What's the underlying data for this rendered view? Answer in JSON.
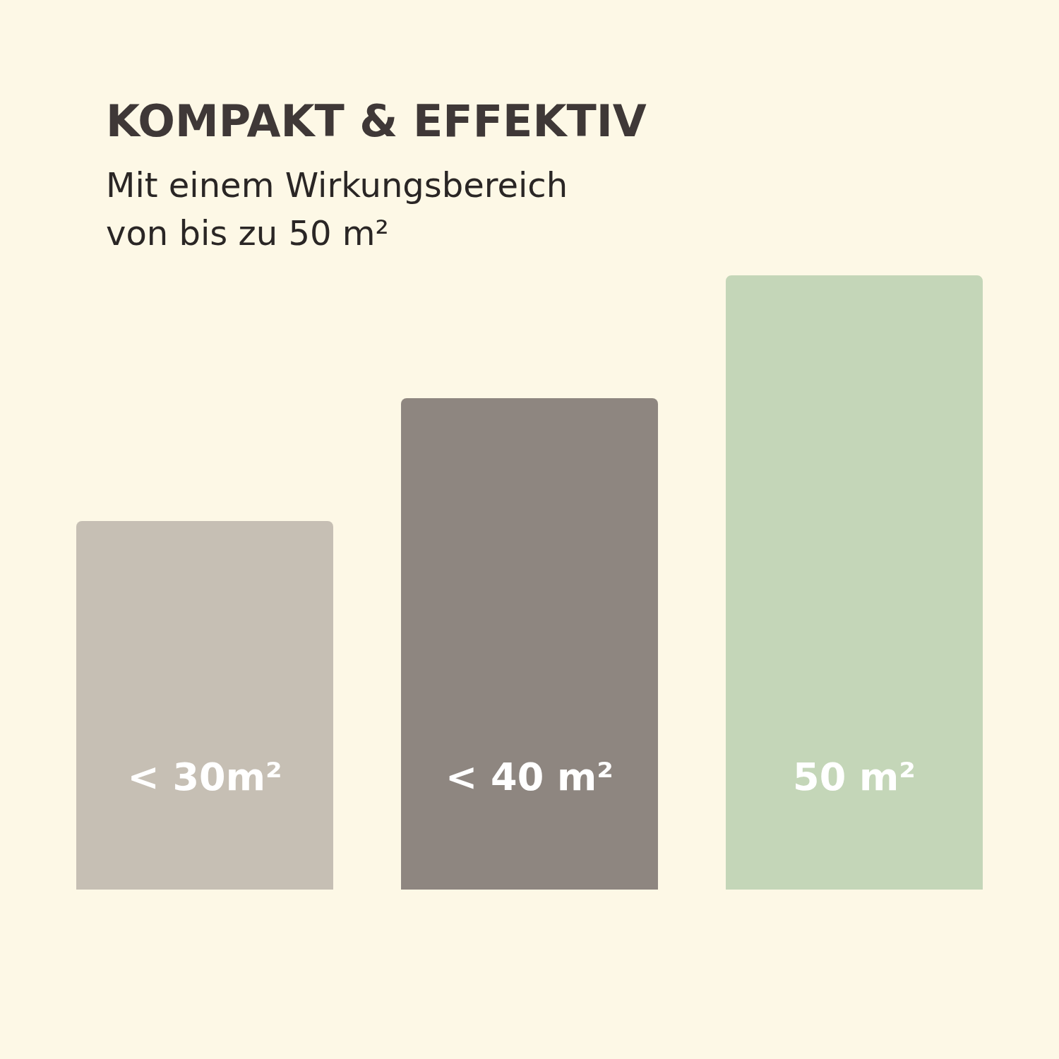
{
  "chart_data": {
    "type": "bar",
    "title": "KOMPAKT & EFFEKTIV",
    "subtitle": "Mit einem Wirkungsbereich von bis zu 50 m²",
    "categories": [
      null,
      null,
      null
    ],
    "values": [
      30,
      40,
      50
    ],
    "colors": [
      "#c6bfb4",
      "#8e8680",
      "#c4d6b8"
    ],
    "value_labels": [
      "< 30m²",
      "< 40 m²",
      "50 m²"
    ],
    "ylim": [
      0,
      50
    ]
  }
}
